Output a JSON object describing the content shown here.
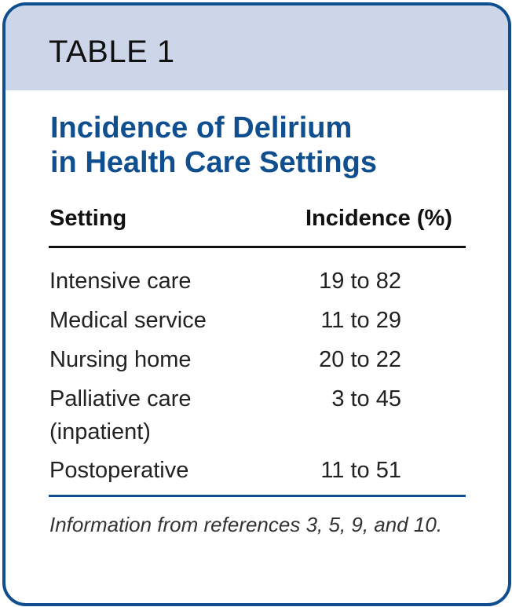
{
  "header": {
    "label": "TABLE 1"
  },
  "title": {
    "line1": "Incidence of Delirium",
    "line2": "in Health Care Settings"
  },
  "table": {
    "columns": [
      "Setting",
      "Incidence (%)"
    ],
    "rows": [
      {
        "setting": "Intensive care",
        "incidence": "19 to 82"
      },
      {
        "setting": "Medical service",
        "incidence": "11 to 29"
      },
      {
        "setting": "Nursing home",
        "incidence": "20 to 22"
      },
      {
        "setting": "Palliative care (inpatient)",
        "setting_line1": "Palliative care",
        "setting_line2": "(inpatient)",
        "incidence": "3 to 45"
      },
      {
        "setting": "Postoperative",
        "incidence": "11 to 51"
      }
    ]
  },
  "footnote": "Information from references 3, 5, 9, and 10.",
  "colors": {
    "accent": "#0f4f8f",
    "header_background": "#ccd6e8"
  }
}
